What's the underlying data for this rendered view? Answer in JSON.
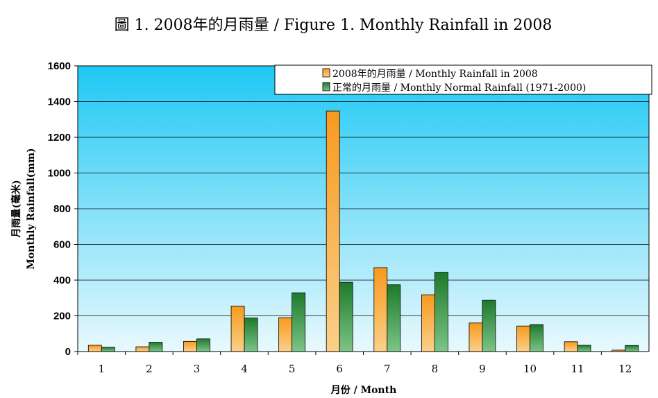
{
  "chart_data": {
    "type": "bar",
    "title": "圖 1. 2008年的月雨量 / Figure 1. Monthly Rainfall in 2008",
    "xlabel": "月份 / Month",
    "ylabel_line1": "月雨量(毫米)",
    "ylabel_line2": "Monthly Rainfall(mm)",
    "categories": [
      "1",
      "2",
      "3",
      "4",
      "5",
      "6",
      "7",
      "8",
      "9",
      "10",
      "11",
      "12"
    ],
    "ylim": [
      0,
      1600
    ],
    "yticks": [
      0,
      200,
      400,
      600,
      800,
      1000,
      1200,
      1400,
      1600
    ],
    "grid": true,
    "legend_position": "top-right",
    "series": [
      {
        "name": "2008年的月雨量 / Monthly Rainfall in 2008",
        "color": "#F7A233",
        "values": [
          35,
          27,
          57,
          255,
          190,
          1347,
          470,
          318,
          160,
          143,
          55,
          8
        ]
      },
      {
        "name": "正常的月雨量 / Monthly Normal Rainfall (1971-2000)",
        "color": "#2E8B3C",
        "values": [
          24,
          52,
          71,
          188,
          329,
          388,
          374,
          444,
          287,
          151,
          35,
          34
        ]
      }
    ]
  }
}
